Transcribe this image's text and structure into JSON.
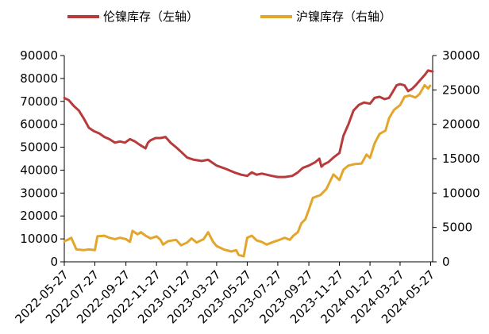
{
  "chart_data": {
    "type": "line",
    "title": "",
    "xlabel": "",
    "ylabel_left": "",
    "ylabel_right": "",
    "x_tick_labels": [
      "2022-05-27",
      "2022-07-27",
      "2022-09-27",
      "2022-11-27",
      "2023-01-27",
      "2023-03-27",
      "2023-05-27",
      "2023-07-27",
      "2023-09-27",
      "2023-11-27",
      "2024-01-27",
      "2024-03-27",
      "2024-05-27"
    ],
    "x_range": [
      "2022-05-27",
      "2024-05-31"
    ],
    "y_left": {
      "min": 0,
      "max": 90000,
      "ticks": [
        "0",
        "10000",
        "20000",
        "30000",
        "40000",
        "50000",
        "60000",
        "70000",
        "80000",
        "90000"
      ]
    },
    "y_right": {
      "min": 0,
      "max": 30000,
      "ticks": [
        "0",
        "5000",
        "10000",
        "15000",
        "20000",
        "25000",
        "30000"
      ]
    },
    "grid": false,
    "legend_position": "top",
    "series": [
      {
        "name": "伦镍库存（左轴）",
        "axis": "left",
        "color": "#b83b3b",
        "points": [
          [
            "2022-05-27",
            71500
          ],
          [
            "2022-06-05",
            70500
          ],
          [
            "2022-06-15",
            68000
          ],
          [
            "2022-06-25",
            66000
          ],
          [
            "2022-07-05",
            62500
          ],
          [
            "2022-07-15",
            58500
          ],
          [
            "2022-07-25",
            57000
          ],
          [
            "2022-08-05",
            56000
          ],
          [
            "2022-08-15",
            54500
          ],
          [
            "2022-08-25",
            53500
          ],
          [
            "2022-09-05",
            52000
          ],
          [
            "2022-09-15",
            52500
          ],
          [
            "2022-09-25",
            52000
          ],
          [
            "2022-10-05",
            53500
          ],
          [
            "2022-10-15",
            52500
          ],
          [
            "2022-10-25",
            51000
          ],
          [
            "2022-11-05",
            49500
          ],
          [
            "2022-11-10",
            52000
          ],
          [
            "2022-11-15",
            53000
          ],
          [
            "2022-11-25",
            54000
          ],
          [
            "2022-12-05",
            54000
          ],
          [
            "2022-12-15",
            54500
          ],
          [
            "2022-12-25",
            52000
          ],
          [
            "2023-01-05",
            50000
          ],
          [
            "2023-01-15",
            48000
          ],
          [
            "2023-01-27",
            45500
          ],
          [
            "2023-02-10",
            44500
          ],
          [
            "2023-02-25",
            44000
          ],
          [
            "2023-03-10",
            44500
          ],
          [
            "2023-03-27",
            42000
          ],
          [
            "2023-04-15",
            40500
          ],
          [
            "2023-05-01",
            39000
          ],
          [
            "2023-05-15",
            38000
          ],
          [
            "2023-05-27",
            37500
          ],
          [
            "2023-06-05",
            39000
          ],
          [
            "2023-06-15",
            38000
          ],
          [
            "2023-06-25",
            38500
          ],
          [
            "2023-07-05",
            38000
          ],
          [
            "2023-07-15",
            37500
          ],
          [
            "2023-07-27",
            37000
          ],
          [
            "2023-08-10",
            37000
          ],
          [
            "2023-08-25",
            37500
          ],
          [
            "2023-09-05",
            39000
          ],
          [
            "2023-09-15",
            41000
          ],
          [
            "2023-09-27",
            42000
          ],
          [
            "2023-10-10",
            43500
          ],
          [
            "2023-10-18",
            45000
          ],
          [
            "2023-10-22",
            41500
          ],
          [
            "2023-10-27",
            42500
          ],
          [
            "2023-11-05",
            43500
          ],
          [
            "2023-11-15",
            45500
          ],
          [
            "2023-11-27",
            47500
          ],
          [
            "2023-12-05",
            55000
          ],
          [
            "2023-12-15",
            60000
          ],
          [
            "2023-12-25",
            66000
          ],
          [
            "2024-01-05",
            68500
          ],
          [
            "2024-01-15",
            69500
          ],
          [
            "2024-01-27",
            69000
          ],
          [
            "2024-02-05",
            71500
          ],
          [
            "2024-02-15",
            72000
          ],
          [
            "2024-02-25",
            71000
          ],
          [
            "2024-03-05",
            71500
          ],
          [
            "2024-03-12",
            74000
          ],
          [
            "2024-03-20",
            77000
          ],
          [
            "2024-03-27",
            77500
          ],
          [
            "2024-04-05",
            77000
          ],
          [
            "2024-04-12",
            74500
          ],
          [
            "2024-04-20",
            75500
          ],
          [
            "2024-04-27",
            77000
          ],
          [
            "2024-05-05",
            79000
          ],
          [
            "2024-05-15",
            81500
          ],
          [
            "2024-05-22",
            83500
          ],
          [
            "2024-05-31",
            83000
          ]
        ]
      },
      {
        "name": "沪镍库存（右轴）",
        "axis": "right",
        "color": "#e3a52a",
        "points": [
          [
            "2022-05-27",
            3000
          ],
          [
            "2022-06-03",
            3200
          ],
          [
            "2022-06-10",
            3500
          ],
          [
            "2022-06-20",
            1800
          ],
          [
            "2022-07-05",
            1700
          ],
          [
            "2022-07-15",
            1800
          ],
          [
            "2022-07-27",
            1700
          ],
          [
            "2022-08-01",
            3700
          ],
          [
            "2022-08-15",
            3800
          ],
          [
            "2022-08-25",
            3500
          ],
          [
            "2022-09-05",
            3300
          ],
          [
            "2022-09-15",
            3500
          ],
          [
            "2022-09-27",
            3300
          ],
          [
            "2022-10-05",
            2900
          ],
          [
            "2022-10-10",
            4500
          ],
          [
            "2022-10-20",
            4000
          ],
          [
            "2022-10-27",
            4300
          ],
          [
            "2022-11-05",
            3800
          ],
          [
            "2022-11-15",
            3400
          ],
          [
            "2022-11-27",
            3700
          ],
          [
            "2022-12-05",
            3200
          ],
          [
            "2022-12-10",
            2500
          ],
          [
            "2022-12-20",
            3000
          ],
          [
            "2023-01-05",
            3200
          ],
          [
            "2023-01-15",
            2400
          ],
          [
            "2023-01-27",
            2800
          ],
          [
            "2023-02-05",
            3400
          ],
          [
            "2023-02-15",
            2800
          ],
          [
            "2023-03-01",
            3300
          ],
          [
            "2023-03-10",
            4300
          ],
          [
            "2023-03-20",
            2900
          ],
          [
            "2023-03-27",
            2300
          ],
          [
            "2023-04-10",
            1800
          ],
          [
            "2023-04-25",
            1500
          ],
          [
            "2023-05-05",
            1700
          ],
          [
            "2023-05-10",
            1000
          ],
          [
            "2023-05-20",
            800
          ],
          [
            "2023-05-27",
            3500
          ],
          [
            "2023-06-05",
            3800
          ],
          [
            "2023-06-15",
            3100
          ],
          [
            "2023-06-25",
            2900
          ],
          [
            "2023-07-05",
            2500
          ],
          [
            "2023-07-15",
            2800
          ],
          [
            "2023-07-27",
            3100
          ],
          [
            "2023-08-10",
            3500
          ],
          [
            "2023-08-20",
            3200
          ],
          [
            "2023-08-27",
            3800
          ],
          [
            "2023-09-05",
            4300
          ],
          [
            "2023-09-12",
            5600
          ],
          [
            "2023-09-20",
            6200
          ],
          [
            "2023-09-27",
            7600
          ],
          [
            "2023-10-05",
            9300
          ],
          [
            "2023-10-20",
            9700
          ],
          [
            "2023-11-01",
            10600
          ],
          [
            "2023-11-15",
            12700
          ],
          [
            "2023-11-27",
            11900
          ],
          [
            "2023-12-05",
            13400
          ],
          [
            "2023-12-15",
            14000
          ],
          [
            "2023-12-27",
            14200
          ],
          [
            "2024-01-10",
            14300
          ],
          [
            "2024-01-20",
            15600
          ],
          [
            "2024-01-27",
            15100
          ],
          [
            "2024-02-05",
            17200
          ],
          [
            "2024-02-15",
            18600
          ],
          [
            "2024-02-27",
            19100
          ],
          [
            "2024-03-05",
            20900
          ],
          [
            "2024-03-15",
            22100
          ],
          [
            "2024-03-27",
            22800
          ],
          [
            "2024-04-05",
            24000
          ],
          [
            "2024-04-15",
            24200
          ],
          [
            "2024-04-27",
            23900
          ],
          [
            "2024-05-05",
            24400
          ],
          [
            "2024-05-15",
            25700
          ],
          [
            "2024-05-22",
            25200
          ],
          [
            "2024-05-26",
            25600
          ]
        ]
      }
    ]
  }
}
